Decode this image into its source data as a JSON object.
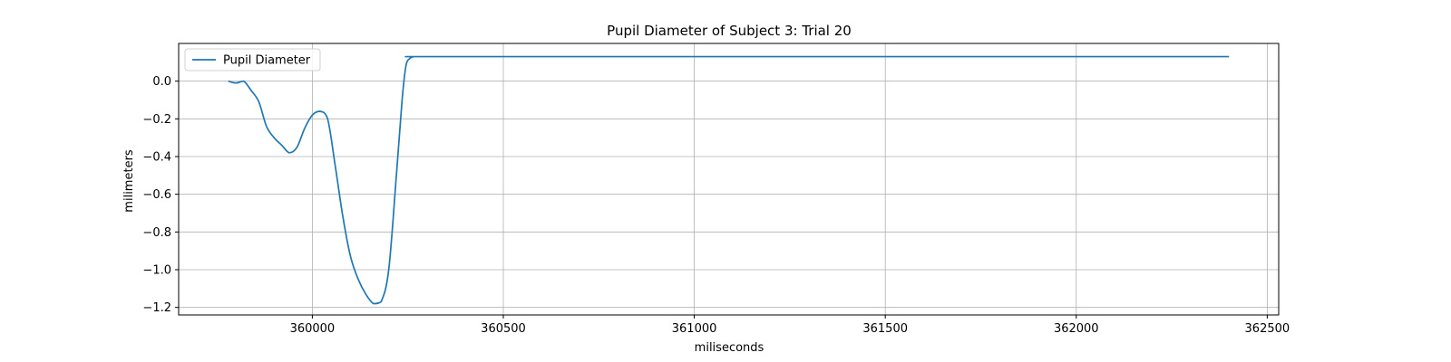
{
  "chart_data": {
    "type": "line",
    "title": "Pupil Diameter of Subject 3: Trial 20",
    "xlabel": "miliseconds",
    "ylabel": "milimeters",
    "xlim": [
      359650,
      362530
    ],
    "ylim": [
      -1.24,
      0.2
    ],
    "xticks": [
      360000,
      360500,
      361000,
      361500,
      362000,
      362500
    ],
    "yticks": [
      -1.2,
      -1.0,
      -0.8,
      -0.6,
      -0.4,
      -0.2,
      0.0
    ],
    "ytick_labels": [
      "−1.2",
      "−1.0",
      "−0.8",
      "−0.6",
      "−0.4",
      "−0.2",
      "0.0"
    ],
    "grid": true,
    "legend_position": "top-left",
    "series": [
      {
        "name": "Pupil Diameter",
        "color": "#1f77b4",
        "x": [
          359780,
          359800,
          359820,
          359840,
          359860,
          359880,
          359900,
          359920,
          359940,
          359960,
          359980,
          360000,
          360020,
          360040,
          360060,
          360080,
          360100,
          360120,
          360140,
          360160,
          360180,
          360200,
          360220,
          360235,
          360245,
          360255,
          360265,
          360275,
          360285,
          360300,
          361000,
          362000,
          362400
        ],
        "values": [
          0.0,
          -0.01,
          0.0,
          -0.05,
          -0.11,
          -0.24,
          -0.3,
          -0.34,
          -0.38,
          -0.35,
          -0.25,
          -0.18,
          -0.16,
          -0.2,
          -0.45,
          -0.72,
          -0.93,
          -1.05,
          -1.13,
          -1.18,
          -1.17,
          -1.0,
          -0.5,
          -0.1,
          0.08,
          0.12,
          0.13,
          0.13,
          0.13,
          0.13,
          0.13,
          0.13,
          0.13
        ]
      }
    ]
  }
}
